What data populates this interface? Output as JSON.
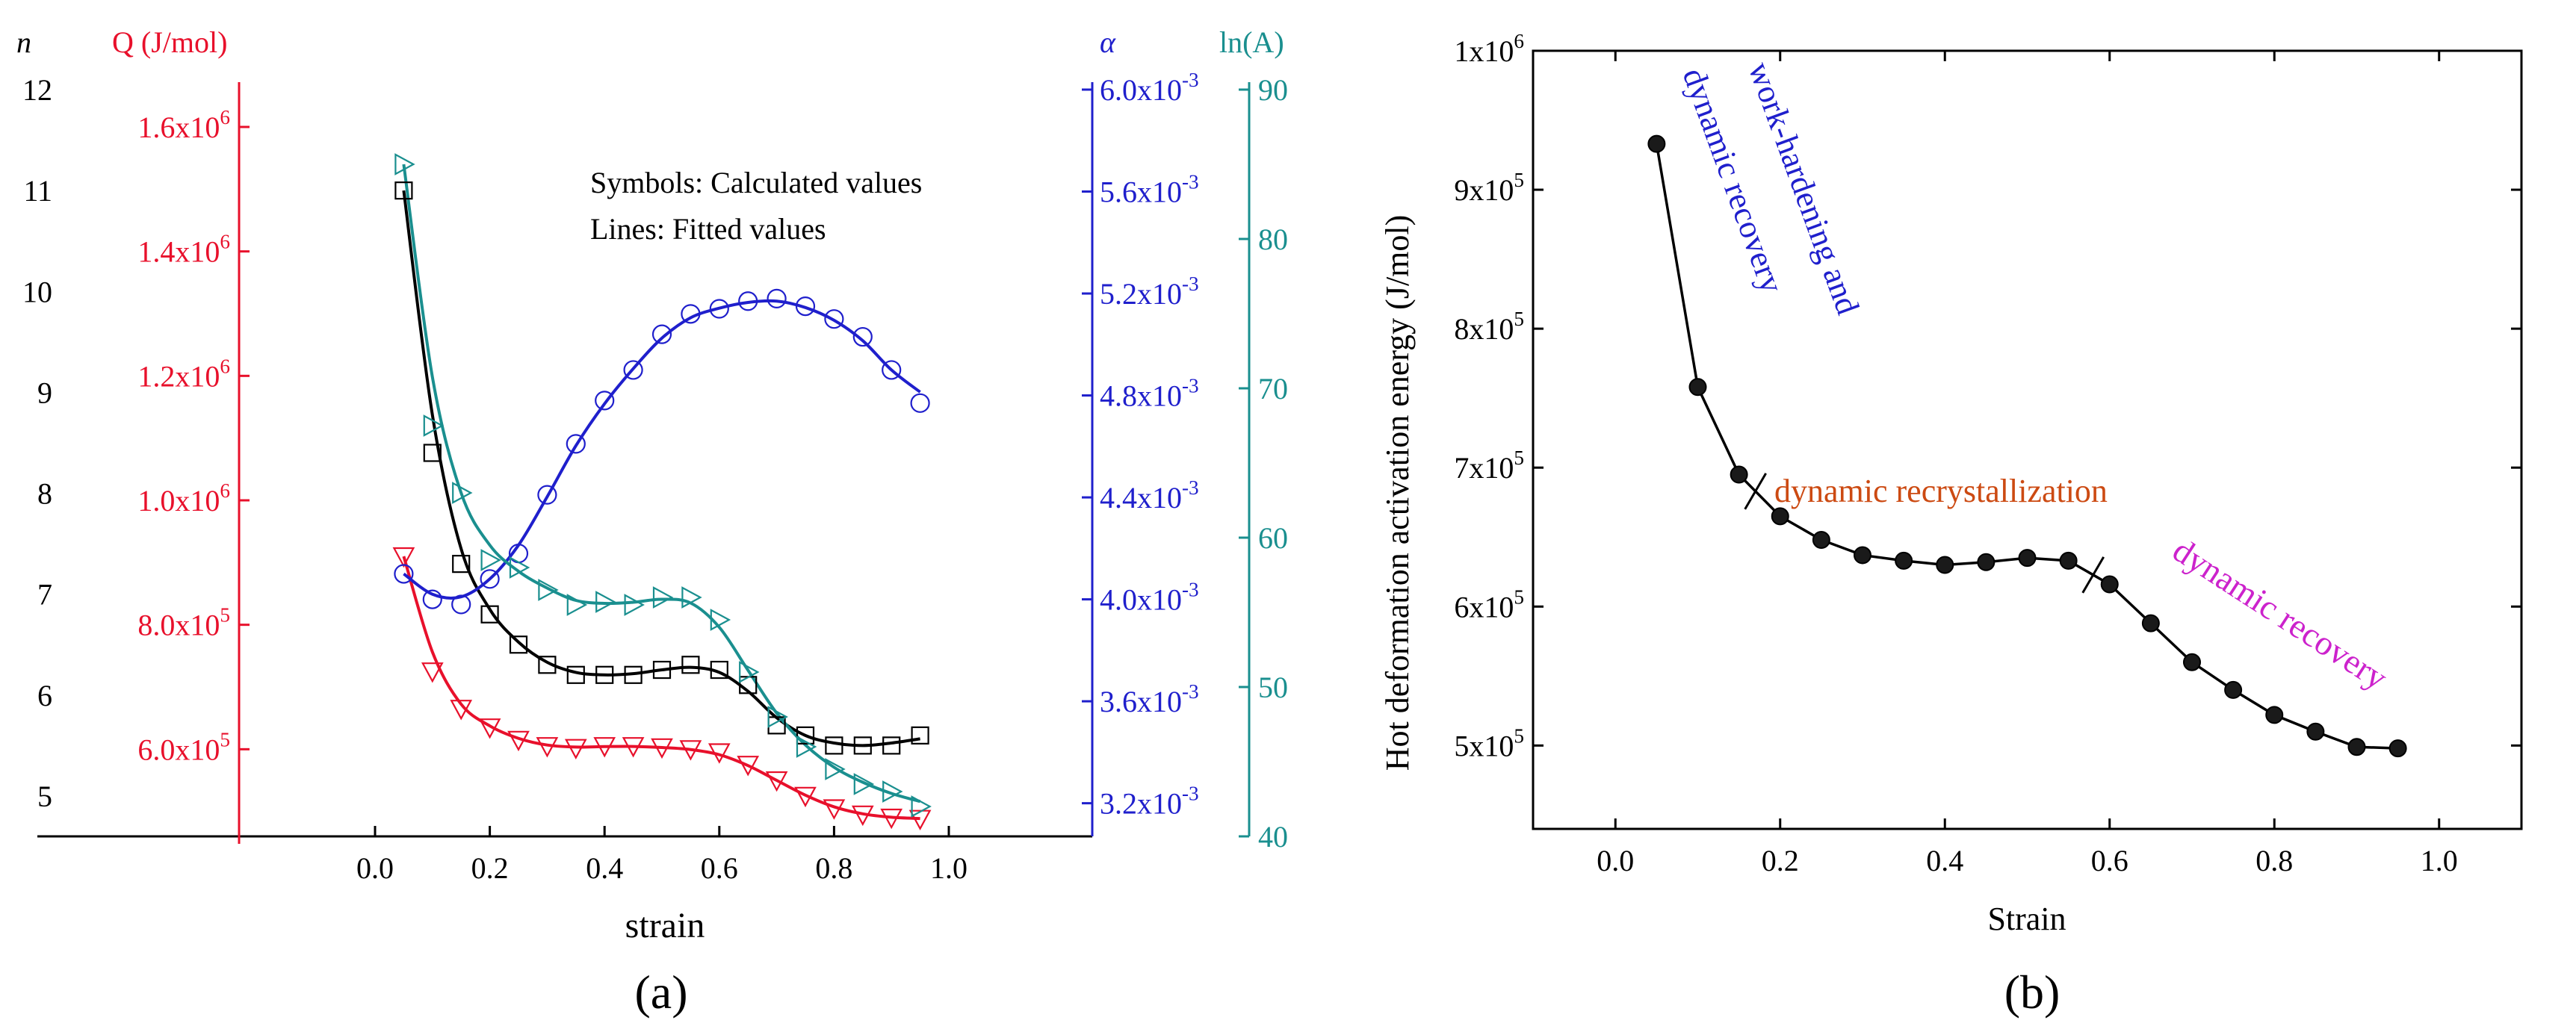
{
  "chart_data": [
    {
      "type": "scatter",
      "panel": "(a)",
      "xlabel": "strain",
      "xlim": [
        -0.25,
        1.25
      ],
      "x_ticks": [
        0.0,
        0.2,
        0.4,
        0.6,
        0.8,
        1.0
      ],
      "x_tick_labels": [
        "0.0",
        "0.2",
        "0.4",
        "0.6",
        "0.8",
        "1.0"
      ],
      "legend_lines": [
        "Symbols: Calculated values",
        "Lines: Fitted values"
      ],
      "legend_placement": "top-right",
      "axes": {
        "n": {
          "label": "n",
          "color": "#000000",
          "lim": [
            4.6,
            12
          ],
          "ticks": [
            5,
            6,
            7,
            8,
            9,
            10,
            11,
            12
          ],
          "tick_labels": [
            "5",
            "6",
            "7",
            "8",
            "9",
            "10",
            "11",
            "12"
          ]
        },
        "Q": {
          "label": "Q (J/mol)",
          "color": "#e8102b",
          "lim": [
            460000,
            1660000
          ],
          "ticks": [
            600000,
            800000,
            1000000,
            1200000,
            1400000,
            1600000
          ],
          "tick_labels": [
            "6.0x10^5",
            "8.0x10^5",
            "1.0x10^6",
            "1.2x10^6",
            "1.4x10^6",
            "1.6x10^6"
          ]
        },
        "alpha": {
          "label": "α",
          "color": "#1f1fcc",
          "lim": [
            0.00307,
            0.006
          ],
          "ticks": [
            0.0032,
            0.0036,
            0.004,
            0.0044,
            0.0048,
            0.0052,
            0.0056,
            0.006
          ],
          "tick_labels": [
            "3.2x10^-3",
            "3.6x10^-3",
            "4.0x10^-3",
            "4.4x10^-3",
            "4.8x10^-3",
            "5.2x10^-3",
            "5.6x10^-3",
            "6.0x10^-3"
          ]
        },
        "lnA": {
          "label": "ln(A)",
          "color": "#1a8f8f",
          "lim": [
            40,
            90
          ],
          "ticks": [
            40,
            50,
            60,
            70,
            80,
            90
          ],
          "tick_labels": [
            "40",
            "50",
            "60",
            "70",
            "80",
            "90"
          ]
        }
      },
      "x": [
        0.05,
        0.1,
        0.15,
        0.2,
        0.25,
        0.3,
        0.35,
        0.4,
        0.45,
        0.5,
        0.55,
        0.6,
        0.65,
        0.7,
        0.75,
        0.8,
        0.85,
        0.9,
        0.95
      ],
      "series": [
        {
          "name": "n",
          "axis": "n",
          "marker": "square",
          "color": "#000000",
          "values": [
            11.0,
            8.4,
            7.3,
            6.8,
            6.5,
            6.3,
            6.2,
            6.2,
            6.2,
            6.25,
            6.3,
            6.25,
            6.1,
            5.7,
            5.6,
            5.5,
            5.5,
            5.5,
            5.6
          ]
        },
        {
          "name": "Q",
          "axis": "Q",
          "marker": "triangle-down",
          "color": "#e8102b",
          "values": [
            910000,
            725000,
            665000,
            635000,
            615000,
            605000,
            602000,
            605000,
            605000,
            603000,
            600000,
            595000,
            575000,
            550000,
            525000,
            505000,
            495000,
            490000,
            488000
          ]
        },
        {
          "name": "alpha",
          "axis": "alpha",
          "marker": "circle",
          "color": "#1f1fcc",
          "values": [
            0.0041,
            0.004,
            0.00398,
            0.00408,
            0.00418,
            0.00441,
            0.00461,
            0.00478,
            0.0049,
            0.00504,
            0.00512,
            0.00514,
            0.00517,
            0.00518,
            0.00515,
            0.0051,
            0.00503,
            0.0049,
            0.00477
          ]
        },
        {
          "name": "ln(A)",
          "axis": "lnA",
          "marker": "triangle-right",
          "color": "#1a8f8f",
          "values": [
            85.0,
            67.5,
            63.0,
            58.5,
            58.0,
            56.5,
            55.5,
            55.7,
            55.5,
            56.0,
            56.0,
            54.5,
            51.0,
            48.0,
            46.0,
            44.5,
            43.5,
            43.0,
            42.0
          ]
        }
      ]
    },
    {
      "type": "line",
      "panel": "(b)",
      "xlabel": "Strain",
      "ylabel": "Hot deformation activation energy (J/mol)",
      "xlim": [
        -0.1,
        1.1
      ],
      "ylim": [
        440000,
        1000000
      ],
      "x_ticks": [
        0.0,
        0.2,
        0.4,
        0.6,
        0.8,
        1.0
      ],
      "x_tick_labels": [
        "0.0",
        "0.2",
        "0.4",
        "0.6",
        "0.8",
        "1.0"
      ],
      "y_ticks": [
        500000,
        600000,
        700000,
        800000,
        900000,
        1000000
      ],
      "y_tick_labels": [
        "5x10^5",
        "6x10^5",
        "7x10^5",
        "8x10^5",
        "9x10^5",
        "1x10^6"
      ],
      "x": [
        0.05,
        0.1,
        0.15,
        0.2,
        0.25,
        0.3,
        0.35,
        0.4,
        0.45,
        0.5,
        0.55,
        0.6,
        0.65,
        0.7,
        0.75,
        0.8,
        0.85,
        0.9,
        0.95
      ],
      "values": [
        933000,
        758000,
        695000,
        665000,
        648000,
        637000,
        633000,
        630000,
        632000,
        635000,
        633000,
        616000,
        588000,
        560000,
        540000,
        522000,
        510000,
        499000,
        498000
      ],
      "stage_breaks": [
        0.17,
        0.58
      ],
      "annotations": [
        {
          "text": "work-hardening and",
          "color": "#1f1fcc"
        },
        {
          "text": "dynamic recovery",
          "color": "#1f1fcc"
        },
        {
          "text": "dynamic recrystallization",
          "color": "#cc4a12"
        },
        {
          "text": "dynamic recovery",
          "color": "#cc22cc"
        }
      ]
    }
  ]
}
